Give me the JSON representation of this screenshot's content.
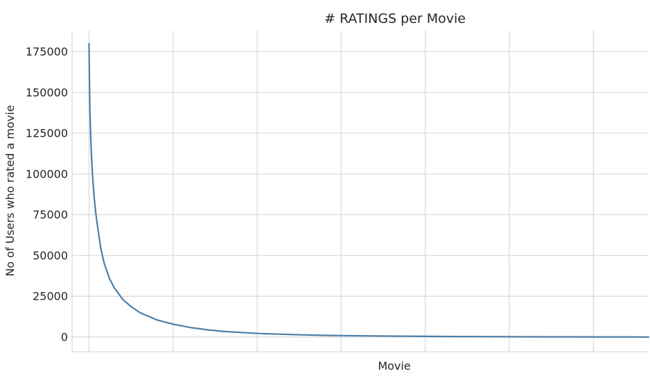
{
  "chart_data": {
    "type": "line",
    "title": "# RATINGS per Movie",
    "xlabel": "Movie",
    "ylabel": "No of Users who rated a movie",
    "x_ticks_labeled": false,
    "x_gridline_count": 7,
    "grid": true,
    "ylim": [
      -9000,
      188000
    ],
    "xlim": [
      -1000,
      33000
    ],
    "y_ticks": [
      0,
      25000,
      50000,
      75000,
      100000,
      125000,
      150000,
      175000
    ],
    "y_tick_labels": [
      "0",
      "25000",
      "50000",
      "75000",
      "100000",
      "125000",
      "150000",
      "175000"
    ],
    "line_color": "#4a7ea8",
    "series": [
      {
        "x": [
          0,
          20,
          50,
          100,
          150,
          200,
          300,
          400,
          500,
          700,
          900,
          1200,
          1500,
          2000,
          2500,
          3000,
          4000,
          5000,
          6000,
          7000,
          8000,
          10000,
          12000,
          14000,
          17000,
          20000,
          23000,
          26000,
          29000,
          32000,
          33000
        ],
        "values": [
          180000,
          160000,
          140000,
          122000,
          110000,
          100000,
          86000,
          76000,
          68000,
          54000,
          45000,
          36000,
          30000,
          23000,
          18500,
          15000,
          10500,
          7800,
          5800,
          4400,
          3400,
          2200,
          1500,
          1000,
          650,
          400,
          250,
          150,
          80,
          30,
          20
        ]
      }
    ]
  }
}
